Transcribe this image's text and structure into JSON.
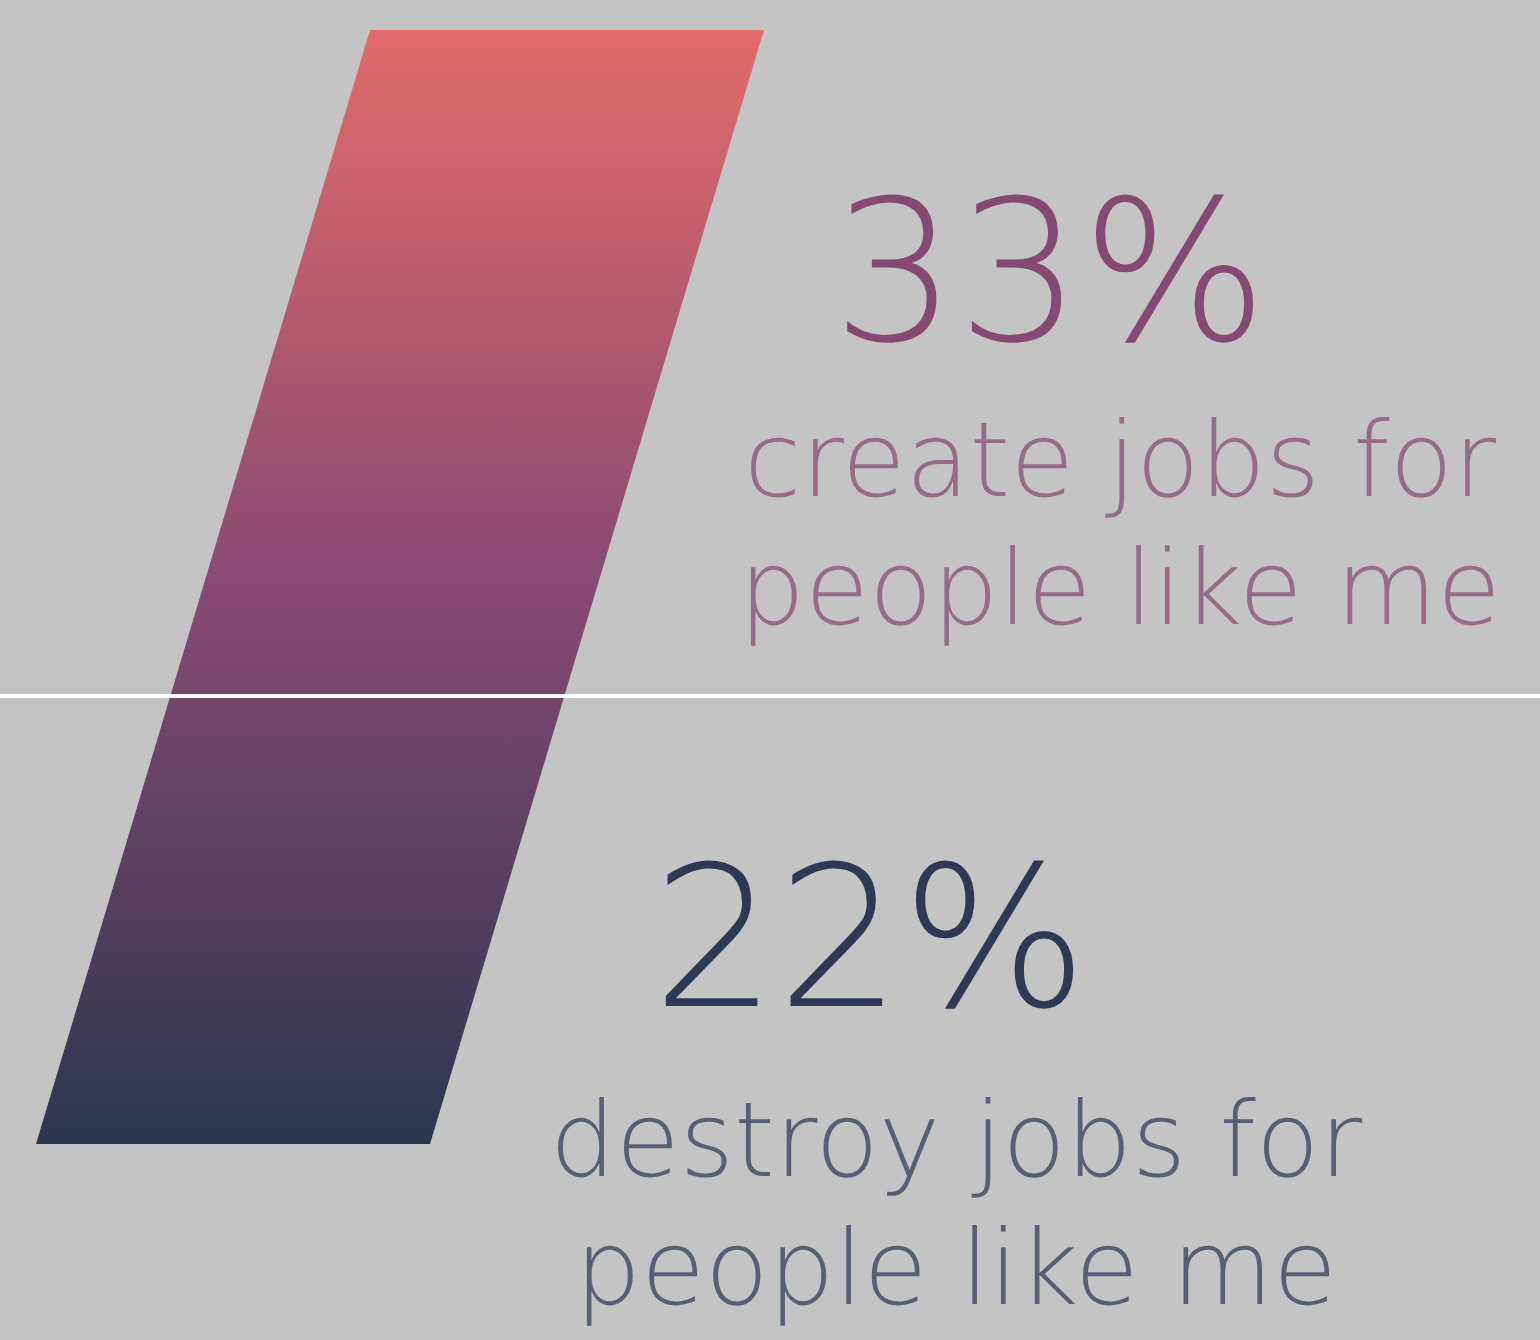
{
  "chart_data": {
    "type": "other",
    "categories": [
      "create jobs for people like me",
      "destroy jobs for people like me"
    ],
    "values": [
      33,
      22
    ],
    "value_labels": [
      "33%",
      "22%"
    ],
    "colors": [
      "#864a72",
      "#2e3a55"
    ]
  }
}
